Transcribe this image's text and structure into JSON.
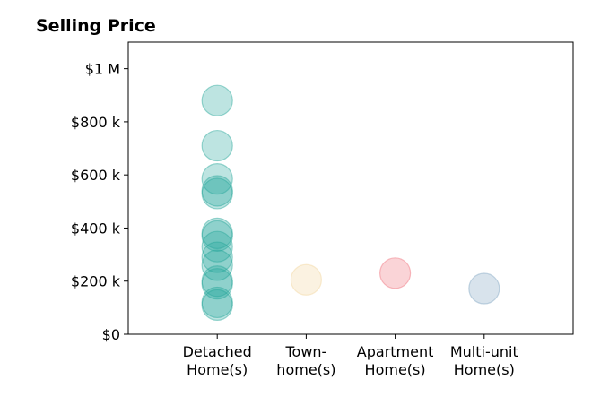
{
  "chart_data": {
    "type": "scatter",
    "title": "Selling Price",
    "xlabel": "",
    "ylabel": "",
    "categories": [
      [
        "Detached",
        "Home(s)"
      ],
      [
        "Town-",
        "home(s)"
      ],
      [
        "Apartment",
        "Home(s)"
      ],
      [
        "Multi-unit",
        "Home(s)"
      ]
    ],
    "y_ticks": [
      {
        "value": 0,
        "label": "$0"
      },
      {
        "value": 200000,
        "label": "$200 k"
      },
      {
        "value": 400000,
        "label": "$400 k"
      },
      {
        "value": 600000,
        "label": "$600 k"
      },
      {
        "value": 800000,
        "label": "$800 k"
      },
      {
        "value": 1000000,
        "label": "$1 M"
      }
    ],
    "ylim": [
      0,
      1100000
    ],
    "xlim": [
      -1,
      4
    ],
    "grid": false,
    "series": [
      {
        "category_index": 0,
        "color": "#26a69a",
        "values": [
          880000,
          710000,
          585000,
          540000,
          530000,
          380000,
          370000,
          330000,
          290000,
          260000,
          200000,
          190000,
          120000,
          110000
        ]
      },
      {
        "category_index": 1,
        "color": "#f2d49b",
        "values": [
          205000
        ]
      },
      {
        "category_index": 2,
        "color": "#ef6f7a",
        "values": [
          230000
        ]
      },
      {
        "category_index": 3,
        "color": "#7fa3c0",
        "values": [
          172000
        ]
      }
    ]
  }
}
